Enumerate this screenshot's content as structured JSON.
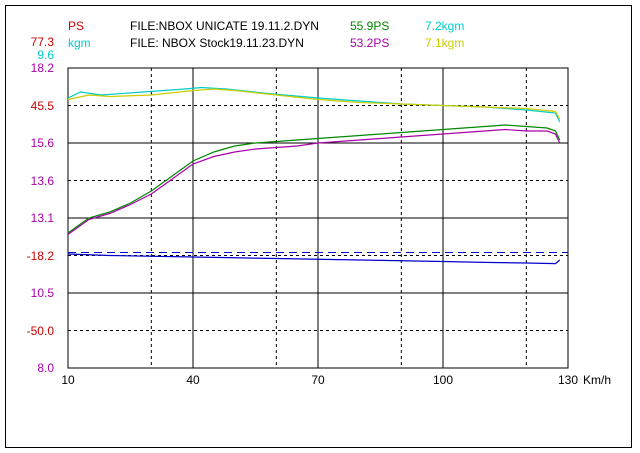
{
  "header": {
    "left_labels": [
      {
        "text": "PS",
        "color": "#cc0000"
      },
      {
        "text": "kgm",
        "color": "#00cccc"
      }
    ],
    "files": [
      {
        "label": "FILE:NBOX UNICATE 19.11.2.DYN",
        "ps": "55.9PS",
        "kgm": "7.2kgm",
        "ps_color": "#008800",
        "kgm_color": "#00cccc"
      },
      {
        "label": "FILE:  NBOX Stock19.11.23.DYN",
        "ps": "53.2PS",
        "kgm": "7.1kgm",
        "ps_color": "#aa00aa",
        "kgm_color": "#cccc00"
      }
    ]
  },
  "chart_data": {
    "type": "line",
    "xlabel": "Km/h",
    "x_ticks": [
      10,
      40,
      70,
      100,
      130
    ],
    "xlim": [
      10,
      130
    ],
    "y_tick_labels": [
      {
        "text": "77.3",
        "color": "#cc0000",
        "gridline": 0
      },
      {
        "text": "9.6",
        "color": "#00cccc",
        "gridline": 0
      },
      {
        "text": "18.2",
        "color": "#aa00aa",
        "gridline": 0
      },
      {
        "text": "45.5",
        "color": "#cc0000",
        "gridline": 1
      },
      {
        "text": "15.6",
        "color": "#aa00aa",
        "gridline": 2
      },
      {
        "text": "13.6",
        "color": "#aa00aa",
        "gridline": 3
      },
      {
        "text": "13.1",
        "color": "#aa00aa",
        "gridline": 4
      },
      {
        "text": "-18.2",
        "color": "#cc0000",
        "gridline": 5
      },
      {
        "text": "10.5",
        "color": "#aa00aa",
        "gridline": 6
      },
      {
        "text": "-50.0",
        "color": "#cc0000",
        "gridline": 7
      },
      {
        "text": "8.0",
        "color": "#aa00aa",
        "gridline": 8
      }
    ],
    "gridline_styles": [
      "solid",
      "dashed",
      "solid",
      "dashed",
      "solid",
      "dashed",
      "solid",
      "dashed",
      "solid"
    ],
    "y_grid_count": 8,
    "series": [
      {
        "color": "#00cccc",
        "points": [
          [
            10,
            0.9
          ],
          [
            13,
            0.92
          ],
          [
            18,
            0.91
          ],
          [
            28,
            0.92
          ],
          [
            38,
            0.93
          ],
          [
            42,
            0.935
          ],
          [
            48,
            0.93
          ],
          [
            58,
            0.915
          ],
          [
            70,
            0.9
          ],
          [
            80,
            0.89
          ],
          [
            90,
            0.88
          ],
          [
            100,
            0.875
          ],
          [
            110,
            0.87
          ],
          [
            120,
            0.86
          ],
          [
            127,
            0.85
          ],
          [
            128,
            0.82
          ]
        ]
      },
      {
        "color": "#cccc00",
        "points": [
          [
            10,
            0.895
          ],
          [
            15,
            0.91
          ],
          [
            20,
            0.905
          ],
          [
            30,
            0.91
          ],
          [
            40,
            0.925
          ],
          [
            45,
            0.93
          ],
          [
            50,
            0.925
          ],
          [
            60,
            0.91
          ],
          [
            70,
            0.895
          ],
          [
            80,
            0.885
          ],
          [
            90,
            0.88
          ],
          [
            100,
            0.875
          ],
          [
            110,
            0.87
          ],
          [
            120,
            0.865
          ],
          [
            127,
            0.855
          ],
          [
            128,
            0.83
          ]
        ]
      },
      {
        "color": "#008800",
        "points": [
          [
            10,
            0.45
          ],
          [
            15,
            0.5
          ],
          [
            20,
            0.52
          ],
          [
            25,
            0.55
          ],
          [
            30,
            0.59
          ],
          [
            35,
            0.64
          ],
          [
            40,
            0.69
          ],
          [
            45,
            0.72
          ],
          [
            50,
            0.74
          ],
          [
            55,
            0.75
          ],
          [
            60,
            0.755
          ],
          [
            65,
            0.76
          ],
          [
            70,
            0.765
          ],
          [
            75,
            0.77
          ],
          [
            80,
            0.775
          ],
          [
            85,
            0.78
          ],
          [
            90,
            0.785
          ],
          [
            95,
            0.79
          ],
          [
            100,
            0.795
          ],
          [
            105,
            0.8
          ],
          [
            110,
            0.805
          ],
          [
            115,
            0.81
          ],
          [
            120,
            0.805
          ],
          [
            125,
            0.8
          ],
          [
            127,
            0.79
          ],
          [
            128,
            0.76
          ]
        ]
      },
      {
        "color": "#aa00aa",
        "points": [
          [
            10,
            0.445
          ],
          [
            15,
            0.495
          ],
          [
            20,
            0.515
          ],
          [
            25,
            0.545
          ],
          [
            30,
            0.58
          ],
          [
            35,
            0.63
          ],
          [
            40,
            0.68
          ],
          [
            45,
            0.705
          ],
          [
            50,
            0.72
          ],
          [
            55,
            0.73
          ],
          [
            60,
            0.735
          ],
          [
            65,
            0.74
          ],
          [
            70,
            0.75
          ],
          [
            75,
            0.755
          ],
          [
            80,
            0.76
          ],
          [
            85,
            0.765
          ],
          [
            90,
            0.77
          ],
          [
            95,
            0.775
          ],
          [
            100,
            0.78
          ],
          [
            105,
            0.785
          ],
          [
            110,
            0.79
          ],
          [
            115,
            0.795
          ],
          [
            120,
            0.79
          ],
          [
            125,
            0.79
          ],
          [
            127,
            0.78
          ],
          [
            128,
            0.75
          ]
        ]
      },
      {
        "color": "#0000cc",
        "points": [
          [
            10,
            0.38
          ],
          [
            20,
            0.375
          ],
          [
            40,
            0.37
          ],
          [
            60,
            0.365
          ],
          [
            80,
            0.36
          ],
          [
            100,
            0.355
          ],
          [
            110,
            0.352
          ],
          [
            120,
            0.35
          ],
          [
            127,
            0.348
          ],
          [
            128,
            0.36
          ]
        ]
      }
    ],
    "dashed_line": {
      "color": "#0000cc",
      "y": 0.385
    }
  }
}
